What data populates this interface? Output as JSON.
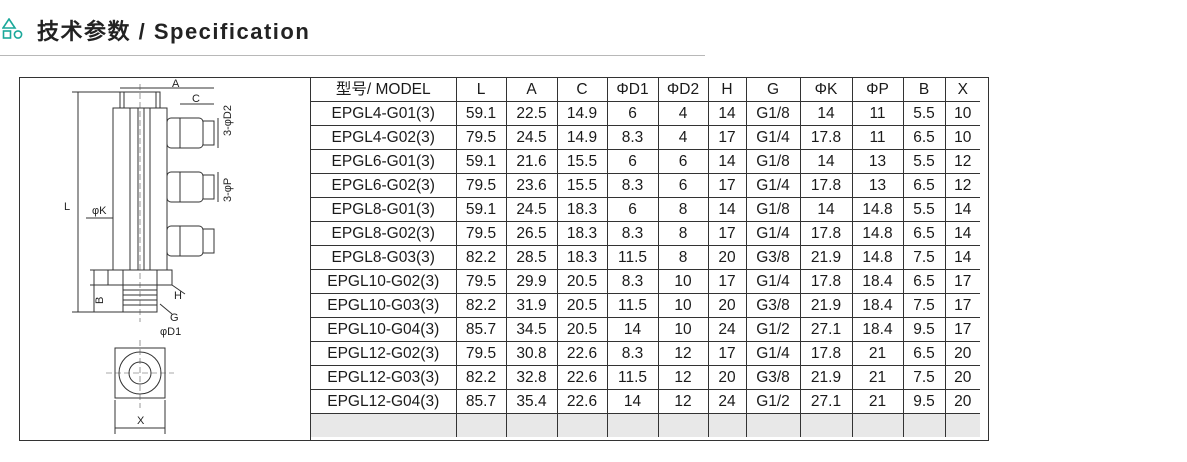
{
  "header": {
    "title": "技术参数 / Specification",
    "icon": "triangle-square-circle-icon",
    "accent_color": "#1aa89a"
  },
  "drawing": {
    "labels": {
      "A": "A",
      "C": "C",
      "D2": "3-φD2",
      "P": "3-φP",
      "L": "L",
      "K": "φK",
      "B": "B",
      "H": "H",
      "G": "G",
      "D1": "φD1",
      "X": "X"
    }
  },
  "table": {
    "columns": [
      "型号/ MODEL",
      "L",
      "A",
      "C",
      "ΦD1",
      "ΦD2",
      "H",
      "G",
      "ΦK",
      "ΦP",
      "B",
      "X"
    ],
    "rows": [
      [
        "EPGL4-G01(3)",
        "59.1",
        "22.5",
        "14.9",
        "6",
        "4",
        "14",
        "G1/8",
        "14",
        "11",
        "5.5",
        "10"
      ],
      [
        "EPGL4-G02(3)",
        "79.5",
        "24.5",
        "14.9",
        "8.3",
        "4",
        "17",
        "G1/4",
        "17.8",
        "11",
        "6.5",
        "10"
      ],
      [
        "EPGL6-G01(3)",
        "59.1",
        "21.6",
        "15.5",
        "6",
        "6",
        "14",
        "G1/8",
        "14",
        "13",
        "5.5",
        "12"
      ],
      [
        "EPGL6-G02(3)",
        "79.5",
        "23.6",
        "15.5",
        "8.3",
        "6",
        "17",
        "G1/4",
        "17.8",
        "13",
        "6.5",
        "12"
      ],
      [
        "EPGL8-G01(3)",
        "59.1",
        "24.5",
        "18.3",
        "6",
        "8",
        "14",
        "G1/8",
        "14",
        "14.8",
        "5.5",
        "14"
      ],
      [
        "EPGL8-G02(3)",
        "79.5",
        "26.5",
        "18.3",
        "8.3",
        "8",
        "17",
        "G1/4",
        "17.8",
        "14.8",
        "6.5",
        "14"
      ],
      [
        "EPGL8-G03(3)",
        "82.2",
        "28.5",
        "18.3",
        "11.5",
        "8",
        "20",
        "G3/8",
        "21.9",
        "14.8",
        "7.5",
        "14"
      ],
      [
        "EPGL10-G02(3)",
        "79.5",
        "29.9",
        "20.5",
        "8.3",
        "10",
        "17",
        "G1/4",
        "17.8",
        "18.4",
        "6.5",
        "17"
      ],
      [
        "EPGL10-G03(3)",
        "82.2",
        "31.9",
        "20.5",
        "11.5",
        "10",
        "20",
        "G3/8",
        "21.9",
        "18.4",
        "7.5",
        "17"
      ],
      [
        "EPGL10-G04(3)",
        "85.7",
        "34.5",
        "20.5",
        "14",
        "10",
        "24",
        "G1/2",
        "27.1",
        "18.4",
        "9.5",
        "17"
      ],
      [
        "EPGL12-G02(3)",
        "79.5",
        "30.8",
        "22.6",
        "8.3",
        "12",
        "17",
        "G1/4",
        "17.8",
        "21",
        "6.5",
        "20"
      ],
      [
        "EPGL12-G03(3)",
        "82.2",
        "32.8",
        "22.6",
        "11.5",
        "12",
        "20",
        "G3/8",
        "21.9",
        "21",
        "7.5",
        "20"
      ],
      [
        "EPGL12-G04(3)",
        "85.7",
        "35.4",
        "22.6",
        "14",
        "12",
        "24",
        "G1/2",
        "27.1",
        "21",
        "9.5",
        "20"
      ]
    ]
  }
}
